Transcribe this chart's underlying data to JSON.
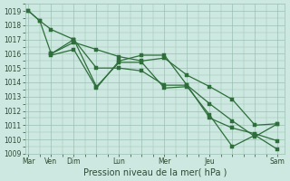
{
  "xlabel": "Pression niveau de la mer( hPa )",
  "background_color": "#cde8e0",
  "grid_color": "#9bbfb3",
  "line_color": "#2d6e3a",
  "ylim": [
    1009,
    1019.5
  ],
  "ytick_vals": [
    1009,
    1010,
    1011,
    1012,
    1013,
    1014,
    1015,
    1016,
    1017,
    1018,
    1019
  ],
  "xtick_labels": [
    "Mar",
    "Ven",
    "Dim",
    "",
    "Lun",
    "",
    "Mer",
    "",
    "Jeu",
    "",
    "",
    "Sam"
  ],
  "xtick_positions": [
    0,
    1,
    2,
    3,
    4,
    5,
    6,
    7,
    8,
    9,
    10,
    11
  ],
  "xlim": [
    -0.15,
    11.3
  ],
  "series": [
    {
      "x": [
        0,
        0.5,
        1,
        2,
        2,
        3,
        4,
        5,
        6,
        7,
        8,
        9,
        10,
        11
      ],
      "y": [
        1019.0,
        1018.3,
        1017.7,
        1017.0,
        1017.0,
        1015.0,
        1015.0,
        1014.8,
        1013.8,
        1013.8,
        1012.5,
        1011.3,
        1010.2,
        1011.1
      ]
    },
    {
      "x": [
        0,
        0.5,
        1,
        2,
        3,
        4,
        5,
        6,
        7,
        8,
        9,
        10,
        11
      ],
      "y": [
        1019.0,
        1018.3,
        1016.0,
        1016.8,
        1016.3,
        1015.8,
        1015.5,
        1015.7,
        1014.5,
        1013.7,
        1012.8,
        1011.0,
        1011.1
      ]
    },
    {
      "x": [
        1,
        2,
        3,
        4,
        5,
        6,
        7,
        8,
        9,
        10,
        11
      ],
      "y": [
        1016.0,
        1017.0,
        1013.7,
        1015.4,
        1015.4,
        1013.6,
        1013.7,
        1011.7,
        1009.5,
        1010.3,
        1009.3
      ]
    },
    {
      "x": [
        1,
        2,
        3,
        4,
        5,
        6,
        7,
        8,
        9,
        10,
        11
      ],
      "y": [
        1015.9,
        1016.3,
        1013.6,
        1015.5,
        1015.9,
        1015.9,
        1013.8,
        1011.5,
        1010.8,
        1010.4,
        1009.9
      ]
    }
  ],
  "xlabel_fontsize": 7,
  "tick_labelsize": 5.5,
  "linewidth": 0.9,
  "markersize": 2.2
}
